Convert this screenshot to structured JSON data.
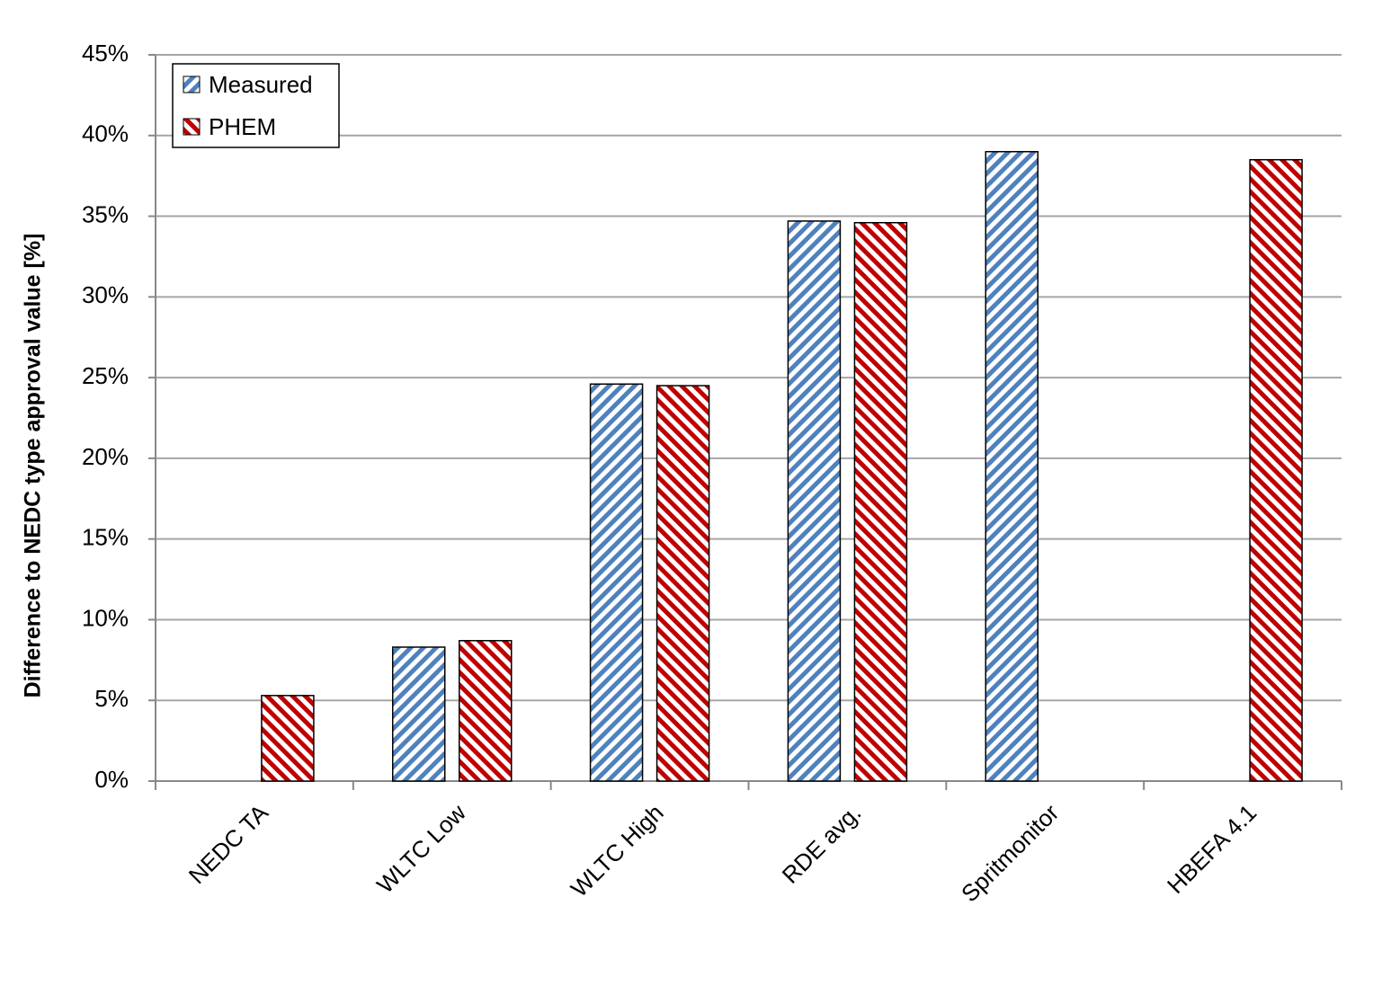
{
  "chart_data": {
    "type": "bar",
    "y_label": "Difference to NEDC type approval value [%]",
    "categories": [
      "NEDC TA",
      "WLTC Low",
      "WLTC High",
      "RDE avg.",
      "Spritmonitor",
      "HBEFA 4.1"
    ],
    "series": [
      {
        "name": "Measured",
        "color": "#4f81bd",
        "values": [
          null,
          8.3,
          24.6,
          34.7,
          39.0,
          null
        ]
      },
      {
        "name": "PHEM",
        "color": "#c00000",
        "values": [
          5.3,
          8.7,
          24.5,
          34.6,
          null,
          38.5
        ]
      }
    ],
    "ylim": [
      0,
      45
    ],
    "yticks": [
      {
        "value": 0,
        "label": "0%"
      },
      {
        "value": 5,
        "label": "5%"
      },
      {
        "value": 10,
        "label": "10%"
      },
      {
        "value": 15,
        "label": "15%"
      },
      {
        "value": 20,
        "label": "20%"
      },
      {
        "value": 25,
        "label": "25%"
      },
      {
        "value": 30,
        "label": "30%"
      },
      {
        "value": 35,
        "label": "35%"
      },
      {
        "value": 40,
        "label": "40%"
      },
      {
        "value": 45,
        "label": "45%"
      }
    ],
    "grid": true,
    "legend": "upper left"
  }
}
